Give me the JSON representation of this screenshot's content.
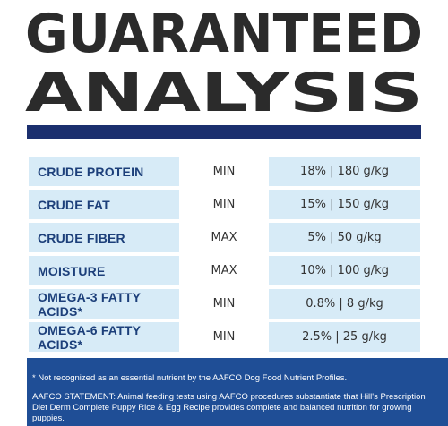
{
  "header": {
    "title_line1": "GUARANTEED",
    "title_line2": "ANALYSIS"
  },
  "table": {
    "rows": [
      [
        "CRUDE PROTEIN",
        "MIN",
        "18% | 180 g/kg"
      ],
      [
        "CRUDE FAT",
        "MIN",
        "15% | 150 g/kg"
      ],
      [
        "CRUDE FIBER",
        "MAX",
        "5% | 50 g/kg"
      ],
      [
        "MOISTURE",
        "MAX",
        "10% | 100 g/kg"
      ],
      [
        "OMEGA-3 FATTY ACIDS*",
        "MIN",
        "0.8% | 8 g/kg"
      ],
      [
        "OMEGA-6 FATTY ACIDS*",
        "MIN",
        "2.5% | 25 g/kg"
      ]
    ]
  },
  "footer": {
    "note": "* Not recognized as an essential nutrient by the AAFCO Dog Food Nutrient Profiles.",
    "statement": "AAFCO STATEMENT: Animal feeding tests using AAFCO procedures substantiate that Hill's Prescription Diet Derm Complete Puppy Rice & Egg Recipe provides complete and balanced nutrition for growing puppies."
  }
}
